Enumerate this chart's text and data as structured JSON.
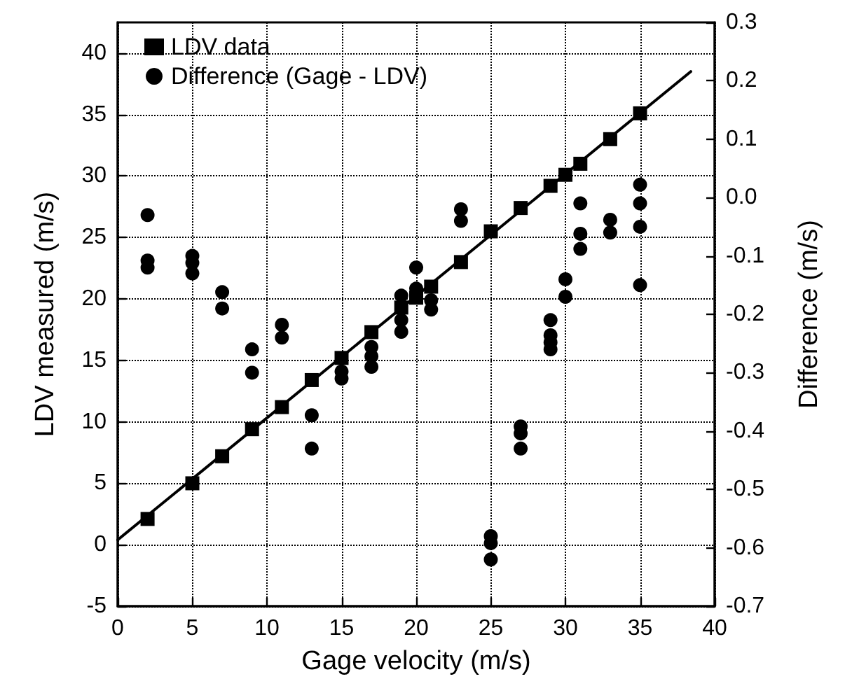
{
  "chart_data": {
    "type": "scatter",
    "xlabel": "Gage velocity (m/s)",
    "ylabel": "LDV measured (m/s)",
    "y2label": "Difference (m/s)",
    "xlim": [
      0,
      40
    ],
    "xticks": [
      0,
      5,
      10,
      15,
      20,
      25,
      30,
      35,
      40
    ],
    "ylim": [
      -5,
      42.5
    ],
    "yticks": [
      -5,
      0,
      5,
      10,
      15,
      20,
      25,
      30,
      35,
      40
    ],
    "y2lim": [
      -0.7,
      0.3
    ],
    "y2ticks": [
      -0.7,
      -0.6,
      -0.5,
      -0.4,
      -0.3,
      -0.2,
      -0.1,
      {
        "value": 0,
        "label": "0.0"
      },
      0.1,
      0.2,
      0.3
    ],
    "grid": true,
    "legend": "top left",
    "series": [
      {
        "name": "LDV data",
        "type": "scatter",
        "marker": "square",
        "color": "#000000",
        "x": [
          2,
          5,
          7,
          9,
          11,
          13,
          15,
          17,
          19,
          20,
          21,
          23,
          25,
          27,
          29,
          30,
          31,
          33,
          35
        ],
        "values": [
          2.1,
          5,
          7.2,
          9.4,
          11.2,
          13.4,
          15.2,
          17.3,
          19.3,
          20.1,
          21,
          23,
          25.5,
          27.4,
          29.2,
          30.1,
          31,
          33,
          35.1
        ]
      },
      {
        "name": "Difference (Gage - LDV)",
        "marker": "circle",
        "axis": "y2",
        "color": "#000000",
        "x": [
          2,
          2,
          2,
          5,
          5,
          5,
          7,
          7,
          9,
          9,
          11,
          11,
          13,
          13,
          15,
          15,
          17,
          17,
          17,
          19,
          19,
          19,
          20,
          20,
          21,
          21,
          23,
          23,
          25,
          25,
          25,
          27,
          27,
          27,
          29,
          29,
          29,
          29,
          30,
          30,
          31,
          31,
          31,
          33,
          33,
          35,
          35,
          35,
          35
        ],
        "values": [
          -0.03,
          -0.108,
          -0.12,
          -0.1,
          -0.112,
          -0.13,
          -0.162,
          -0.19,
          -0.26,
          -0.3,
          -0.218,
          -0.24,
          -0.373,
          -0.43,
          -0.298,
          -0.31,
          -0.256,
          -0.272,
          -0.29,
          -0.168,
          -0.21,
          -0.23,
          -0.12,
          -0.156,
          -0.176,
          -0.192,
          -0.02,
          -0.04,
          -0.58,
          -0.592,
          -0.62,
          -0.392,
          -0.404,
          -0.43,
          -0.21,
          -0.236,
          -0.248,
          -0.26,
          -0.14,
          -0.17,
          -0.01,
          -0.062,
          -0.088,
          -0.038,
          -0.06,
          0.022,
          -0.01,
          -0.05,
          -0.15
        ]
      },
      {
        "type": "line",
        "marker": "none",
        "line_style": "solid",
        "color": "#000000",
        "x": [
          0,
          38.4
        ],
        "values": [
          0.4,
          38.5
        ]
      }
    ]
  }
}
